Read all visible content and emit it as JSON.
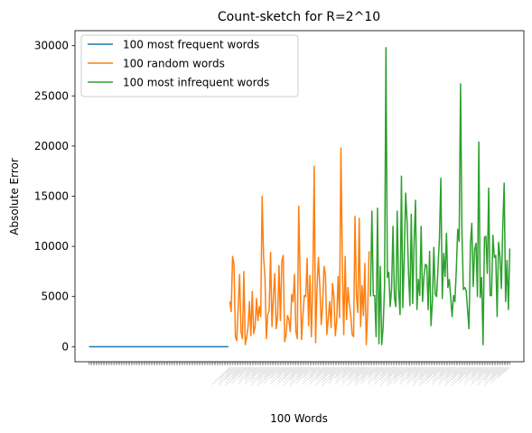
{
  "chart_data": {
    "type": "line",
    "title": "Count-sketch for R=2^10",
    "xlabel": "100 Words",
    "ylabel": "Absolute Error",
    "ylim": [
      -1500,
      31500
    ],
    "yticks": [
      0,
      5000,
      10000,
      15000,
      20000,
      25000,
      30000
    ],
    "yticklabels": [
      "0",
      "5000",
      "10000",
      "15000",
      "20000",
      "25000",
      "30000"
    ],
    "grid": false,
    "legend_position": "top-left",
    "series": [
      {
        "name": "100 most frequent words",
        "color": "#1f77b4",
        "x_start": 0,
        "values": [
          0,
          0,
          0,
          0,
          0,
          0,
          0,
          0,
          0,
          0,
          0,
          0,
          0,
          0,
          0,
          0,
          0,
          0,
          0,
          0,
          0,
          0,
          0,
          0,
          0,
          0,
          0,
          0,
          0,
          0,
          0,
          0,
          0,
          0,
          0,
          0,
          0,
          0,
          0,
          0,
          0,
          0,
          0,
          0,
          0,
          0,
          0,
          0,
          0,
          0,
          0,
          0,
          0,
          0,
          0,
          0,
          0,
          0,
          0,
          0,
          0,
          0,
          0,
          0,
          0,
          0,
          0,
          0,
          0,
          0,
          0,
          0,
          0,
          0,
          0,
          0,
          0,
          0,
          0,
          0,
          0,
          0,
          0,
          0,
          0,
          0,
          0,
          0,
          0,
          0,
          0,
          0,
          0,
          0,
          0,
          0,
          0,
          0,
          0,
          0
        ]
      },
      {
        "name": "100 random words",
        "color": "#ff7f0e",
        "x_start": 100,
        "values": [
          4500,
          3500,
          9000,
          8200,
          1000,
          600,
          4000,
          7200,
          1500,
          800,
          7500,
          200,
          900,
          2000,
          4500,
          1100,
          5500,
          1300,
          2000,
          4800,
          2600,
          4000,
          3000,
          15000,
          9000,
          7000,
          800,
          3200,
          3600,
          9400,
          2000,
          5000,
          7300,
          1800,
          3000,
          8100,
          2600,
          8500,
          9100,
          500,
          1200,
          3100,
          2700,
          1500,
          5200,
          4500,
          7200,
          1500,
          800,
          14000,
          6900,
          700,
          3200,
          5100,
          5000,
          8800,
          2100,
          7100,
          1000,
          6200,
          18000,
          400,
          5800,
          8900,
          6000,
          2200,
          4200,
          8000,
          7100,
          1200,
          2800,
          4500,
          1900,
          6300,
          5000,
          1100,
          2600,
          7000,
          2900,
          19800,
          8100,
          1200,
          9000,
          2700,
          5900,
          4200,
          3100,
          1200,
          1000,
          13000,
          5200,
          3400,
          12800,
          2000,
          6100,
          3100,
          8300,
          200,
          3500,
          9500
        ]
      },
      {
        "name": "100 most infrequent words",
        "color": "#2ca02c",
        "x_start": 200,
        "values": [
          5000,
          13500,
          5100,
          5100,
          1000,
          13800,
          300,
          8000,
          200,
          2000,
          6000,
          29800,
          6900,
          7400,
          4000,
          5800,
          12000,
          4900,
          4000,
          13500,
          5700,
          3200,
          17000,
          3900,
          9000,
          15300,
          12500,
          7500,
          4100,
          13200,
          4300,
          10500,
          14600,
          3700,
          6700,
          5100,
          12000,
          4500,
          7000,
          8200,
          8100,
          3700,
          9500,
          2100,
          4500,
          9900,
          5200,
          5000,
          8000,
          10800,
          16800,
          4800,
          9300,
          7000,
          11300,
          5900,
          6700,
          4900,
          3000,
          5100,
          4500,
          7700,
          11700,
          10500,
          26200,
          11400,
          5700,
          5900,
          5600,
          3700,
          1800,
          10200,
          12300,
          6000,
          9700,
          10300,
          5000,
          20400,
          4900,
          6900,
          200,
          10900,
          11000,
          7300,
          15800,
          5100,
          5100,
          11100,
          8900,
          9100,
          3000,
          10400,
          9000,
          5800,
          11900,
          16300,
          4500,
          8600,
          3700,
          9800
        ]
      }
    ]
  }
}
